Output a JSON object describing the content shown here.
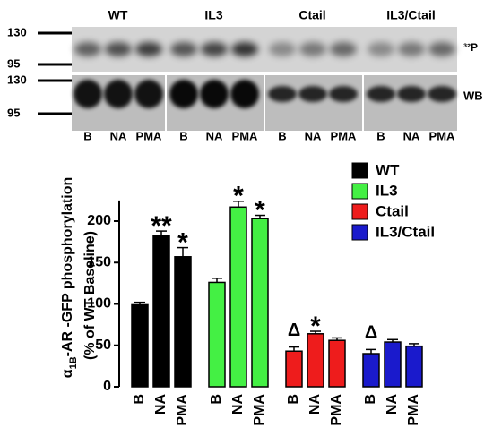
{
  "blot": {
    "groups": [
      "WT",
      "IL3",
      "Ctail",
      "IL3/Ctail"
    ],
    "markers": [
      130,
      95
    ],
    "lanes": [
      "B",
      "NA",
      "PMA"
    ],
    "panels": [
      "³²P",
      "WB"
    ]
  },
  "chart_data": {
    "type": "bar",
    "y_label": [
      "α",
      "1B",
      "-AR -GFP phosphorylation"
    ],
    "y_label_2": "(% of WT Baseline)",
    "categories": [
      "B",
      "NA",
      "PMA"
    ],
    "series": [
      {
        "name": "WT",
        "color": "#000000",
        "values": [
          99,
          182,
          157
        ],
        "errors": [
          3,
          6,
          11
        ],
        "annotations": [
          null,
          "**",
          "*"
        ]
      },
      {
        "name": "IL3",
        "color": "#44f044",
        "values": [
          126,
          217,
          203
        ],
        "errors": [
          5,
          7,
          4
        ],
        "annotations": [
          null,
          "*",
          "*"
        ]
      },
      {
        "name": "Ctail",
        "color": "#ee1c1c",
        "values": [
          43,
          64,
          56
        ],
        "errors": [
          5,
          3,
          3
        ],
        "annotations": [
          "Δ",
          "*",
          null
        ]
      },
      {
        "name": "IL3/Ctail",
        "color": "#1a1acc",
        "values": [
          40,
          54,
          49
        ],
        "errors": [
          5,
          3,
          3
        ],
        "annotations": [
          "Δ",
          null,
          null
        ]
      }
    ],
    "ylim": [
      0,
      225
    ],
    "yticks": [
      0,
      50,
      100,
      150,
      200
    ],
    "legend": "upper right"
  }
}
